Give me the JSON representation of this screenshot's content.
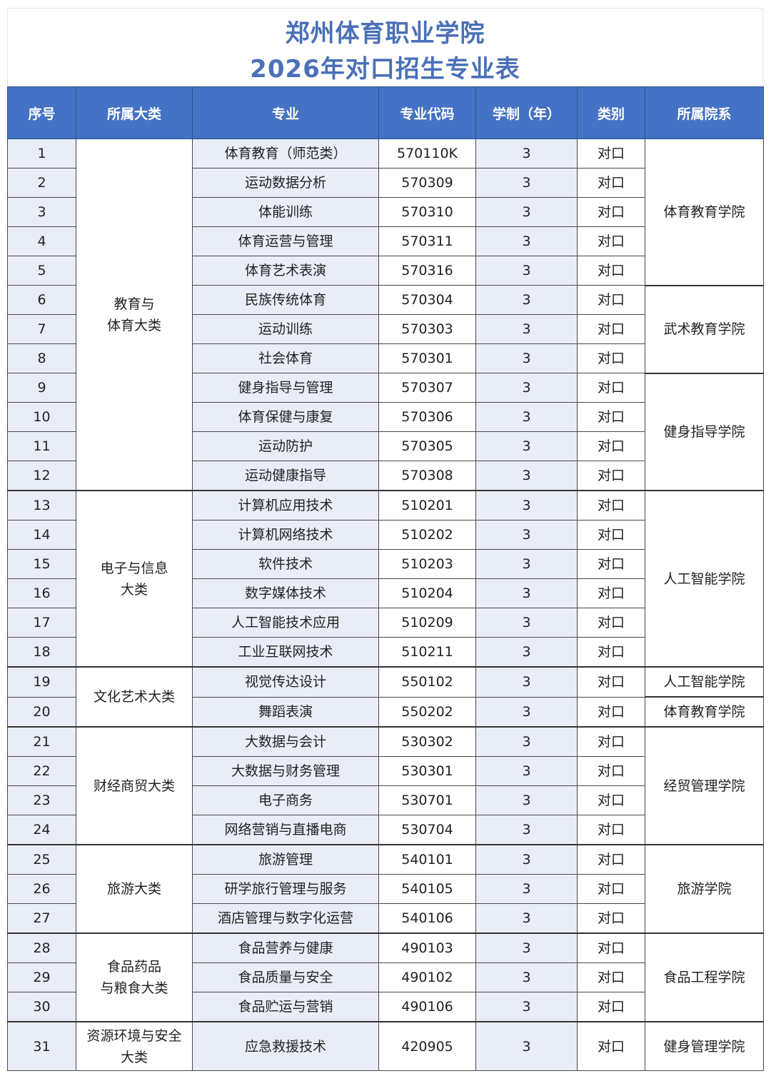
{
  "title": {
    "line1": "郑州体育职业学院",
    "line2": "2026年对口招生专业表"
  },
  "columns": [
    "序号",
    "所属大类",
    "专业",
    "专业代码",
    "学制（年）",
    "类别",
    "所属院系"
  ],
  "colors": {
    "header_bg": "#4472c4",
    "title": "#4a70b8",
    "shaded_column": "#e9edf8"
  },
  "rows": [
    {
      "no": "1",
      "major": "体育教育（师范类）",
      "code": "570110K",
      "years": "3",
      "type": "对口"
    },
    {
      "no": "2",
      "major": "运动数据分析",
      "code": "570309",
      "years": "3",
      "type": "对口"
    },
    {
      "no": "3",
      "major": "体能训练",
      "code": "570310",
      "years": "3",
      "type": "对口"
    },
    {
      "no": "4",
      "major": "体育运营与管理",
      "code": "570311",
      "years": "3",
      "type": "对口"
    },
    {
      "no": "5",
      "major": "体育艺术表演",
      "code": "570316",
      "years": "3",
      "type": "对口"
    },
    {
      "no": "6",
      "major": "民族传统体育",
      "code": "570304",
      "years": "3",
      "type": "对口"
    },
    {
      "no": "7",
      "major": "运动训练",
      "code": "570303",
      "years": "3",
      "type": "对口"
    },
    {
      "no": "8",
      "major": "社会体育",
      "code": "570301",
      "years": "3",
      "type": "对口"
    },
    {
      "no": "9",
      "major": "健身指导与管理",
      "code": "570307",
      "years": "3",
      "type": "对口"
    },
    {
      "no": "10",
      "major": "体育保健与康复",
      "code": "570306",
      "years": "3",
      "type": "对口"
    },
    {
      "no": "11",
      "major": "运动防护",
      "code": "570305",
      "years": "3",
      "type": "对口"
    },
    {
      "no": "12",
      "major": "运动健康指导",
      "code": "570308",
      "years": "3",
      "type": "对口"
    },
    {
      "no": "13",
      "major": "计算机应用技术",
      "code": "510201",
      "years": "3",
      "type": "对口"
    },
    {
      "no": "14",
      "major": "计算机网络技术",
      "code": "510202",
      "years": "3",
      "type": "对口"
    },
    {
      "no": "15",
      "major": "软件技术",
      "code": "510203",
      "years": "3",
      "type": "对口"
    },
    {
      "no": "16",
      "major": "数字媒体技术",
      "code": "510204",
      "years": "3",
      "type": "对口"
    },
    {
      "no": "17",
      "major": "人工智能技术应用",
      "code": "510209",
      "years": "3",
      "type": "对口"
    },
    {
      "no": "18",
      "major": "工业互联网技术",
      "code": "510211",
      "years": "3",
      "type": "对口"
    },
    {
      "no": "19",
      "major": "视觉传达设计",
      "code": "550102",
      "years": "3",
      "type": "对口"
    },
    {
      "no": "20",
      "major": "舞蹈表演",
      "code": "550202",
      "years": "3",
      "type": "对口"
    },
    {
      "no": "21",
      "major": "大数据与会计",
      "code": "530302",
      "years": "3",
      "type": "对口"
    },
    {
      "no": "22",
      "major": "大数据与财务管理",
      "code": "530301",
      "years": "3",
      "type": "对口"
    },
    {
      "no": "23",
      "major": "电子商务",
      "code": "530701",
      "years": "3",
      "type": "对口"
    },
    {
      "no": "24",
      "major": "网络营销与直播电商",
      "code": "530704",
      "years": "3",
      "type": "对口"
    },
    {
      "no": "25",
      "major": "旅游管理",
      "code": "540101",
      "years": "3",
      "type": "对口"
    },
    {
      "no": "26",
      "major": "研学旅行管理与服务",
      "code": "540105",
      "years": "3",
      "type": "对口"
    },
    {
      "no": "27",
      "major": "酒店管理与数字化运营",
      "code": "540106",
      "years": "3",
      "type": "对口"
    },
    {
      "no": "28",
      "major": "食品营养与健康",
      "code": "490103",
      "years": "3",
      "type": "对口"
    },
    {
      "no": "29",
      "major": "食品质量与安全",
      "code": "490102",
      "years": "3",
      "type": "对口"
    },
    {
      "no": "30",
      "major": "食品贮运与营销",
      "code": "490106",
      "years": "3",
      "type": "对口"
    },
    {
      "no": "31",
      "major": "应急救援技术",
      "code": "420905",
      "years": "3",
      "type": "对口"
    }
  ],
  "category_groups": [
    {
      "label": "教育与\n体育大类",
      "first": 1,
      "last": 12
    },
    {
      "label": "电子与信息\n大类",
      "first": 13,
      "last": 18
    },
    {
      "label": "文化艺术大类",
      "first": 19,
      "last": 20
    },
    {
      "label": "财经商贸大类",
      "first": 21,
      "last": 24
    },
    {
      "label": "旅游大类",
      "first": 25,
      "last": 27
    },
    {
      "label": "食品药品\n与粮食大类",
      "first": 28,
      "last": 30
    },
    {
      "label": "资源环境与安全\n大类",
      "first": 31,
      "last": 31
    }
  ],
  "college_groups": [
    {
      "label": "体育教育学院",
      "first": 1,
      "last": 5
    },
    {
      "label": "武术教育学院",
      "first": 6,
      "last": 8
    },
    {
      "label": "健身指导学院",
      "first": 9,
      "last": 12
    },
    {
      "label": "人工智能学院",
      "first": 13,
      "last": 18
    },
    {
      "label": "人工智能学院",
      "first": 19,
      "last": 19
    },
    {
      "label": "体育教育学院",
      "first": 20,
      "last": 20
    },
    {
      "label": "经贸管理学院",
      "first": 21,
      "last": 24
    },
    {
      "label": "旅游学院",
      "first": 25,
      "last": 27
    },
    {
      "label": "食品工程学院",
      "first": 28,
      "last": 30
    },
    {
      "label": "健身管理学院",
      "first": 31,
      "last": 31
    }
  ]
}
